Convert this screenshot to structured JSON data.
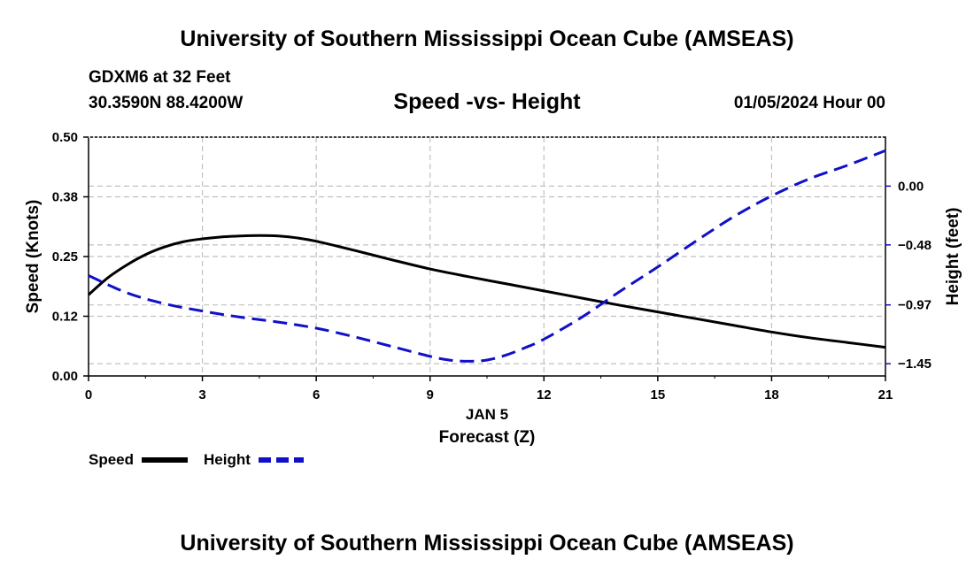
{
  "header": {
    "title": "University of Southern Mississippi Ocean Cube (AMSEAS)",
    "station": "GDXM6 at 32 Feet",
    "coords": "30.3590N  88.4200W",
    "chart_title": "Speed -vs- Height",
    "datetime": "01/05/2024 Hour 00"
  },
  "footer": {
    "title": "University of Southern Mississippi Ocean Cube (AMSEAS)"
  },
  "legend": {
    "speed_label": "Speed",
    "height_label": "Height"
  },
  "colors": {
    "speed": "#000000",
    "height": "#1010c8",
    "grid": "#c0c0c0"
  },
  "chart_data": {
    "type": "line",
    "title": "Speed -vs- Height",
    "xlabel": "Forecast (Z)",
    "xlabel_date": "JAN 5",
    "ylabel_left": "Speed (Knots)",
    "ylabel_right": "Height (feet)",
    "xlim": [
      0,
      21
    ],
    "ylim_left": [
      0,
      0.5
    ],
    "ylim_right": [
      -1.55,
      0.4
    ],
    "x_ticks": [
      0,
      3,
      6,
      9,
      12,
      15,
      18,
      21
    ],
    "x_tick_labels": [
      "0",
      "3",
      "6",
      "9",
      "12",
      "15",
      "18",
      "21"
    ],
    "y_left_ticks": [
      0.0,
      0.125,
      0.25,
      0.375,
      0.5
    ],
    "y_left_tick_labels": [
      "0.00",
      "0.12",
      "0.25",
      "0.38",
      "0.50"
    ],
    "y_right_ticks": [
      0.0,
      -0.48,
      -0.97,
      -1.45
    ],
    "y_right_tick_labels": [
      "0.00",
      "−0.48",
      "−0.97",
      "−1.45"
    ],
    "grid": true,
    "series": [
      {
        "name": "Speed",
        "axis": "left",
        "style": "solid",
        "x": [
          0,
          0.5,
          1,
          1.5,
          2,
          2.5,
          3,
          3.5,
          4,
          4.5,
          5,
          5.5,
          6,
          7,
          8,
          9,
          10,
          11,
          12,
          13,
          14,
          15,
          16,
          17,
          18,
          19,
          20,
          21
        ],
        "values": [
          0.17,
          0.205,
          0.232,
          0.254,
          0.27,
          0.281,
          0.287,
          0.291,
          0.293,
          0.294,
          0.293,
          0.289,
          0.282,
          0.263,
          0.243,
          0.224,
          0.208,
          0.193,
          0.178,
          0.163,
          0.148,
          0.134,
          0.12,
          0.106,
          0.092,
          0.08,
          0.07,
          0.06
        ]
      },
      {
        "name": "Height",
        "axis": "right",
        "style": "dashed",
        "x": [
          0,
          1,
          2,
          3,
          4,
          5,
          6,
          7,
          8,
          9,
          9.5,
          10,
          10.5,
          11,
          11.5,
          12,
          13,
          14,
          15,
          16,
          17,
          18,
          19,
          20,
          21
        ],
        "values": [
          -0.73,
          -0.87,
          -0.96,
          -1.02,
          -1.07,
          -1.11,
          -1.16,
          -1.23,
          -1.31,
          -1.39,
          -1.42,
          -1.43,
          -1.42,
          -1.38,
          -1.32,
          -1.25,
          -1.07,
          -0.86,
          -0.66,
          -0.45,
          -0.25,
          -0.08,
          0.06,
          0.17,
          0.29
        ]
      }
    ]
  }
}
